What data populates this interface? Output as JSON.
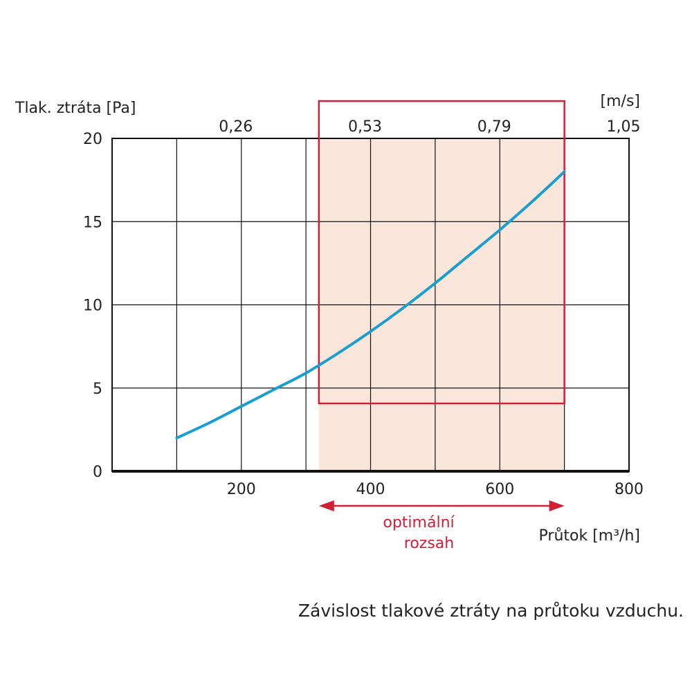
{
  "caption": "Závislost tlakové ztráty na průtoku vzduchu.",
  "chart_data": {
    "type": "line",
    "ylabel": "Tlak. ztráta [Pa]",
    "xlabel": "Průtok [m³/h]",
    "x2label": "[m/s]",
    "xlim": [
      0,
      800
    ],
    "ylim": [
      0,
      20
    ],
    "x_ticks": [
      {
        "value": 200,
        "label": "200"
      },
      {
        "value": 400,
        "label": "400"
      },
      {
        "value": 600,
        "label": "600"
      },
      {
        "value": 800,
        "label": "800"
      }
    ],
    "y_ticks": [
      {
        "value": 0,
        "label": "0"
      },
      {
        "value": 5,
        "label": "5"
      },
      {
        "value": 10,
        "label": "10"
      },
      {
        "value": 15,
        "label": "15"
      },
      {
        "value": 20,
        "label": "20"
      }
    ],
    "x_gridlines": [
      100,
      200,
      300,
      400,
      500,
      600,
      700
    ],
    "secondary_x_ticks": [
      {
        "flow": 200,
        "label": "0,26"
      },
      {
        "flow": 400,
        "label": "0,53"
      },
      {
        "flow": 600,
        "label": "0,79"
      },
      {
        "flow": 800,
        "label": "1,05"
      }
    ],
    "grid": true,
    "series": [
      {
        "color": "#1a9ed0",
        "x": [
          100,
          150,
          200,
          250,
          300,
          350,
          400,
          450,
          500,
          550,
          600,
          650,
          700
        ],
        "y": [
          2.0,
          2.9,
          3.9,
          4.9,
          5.9,
          7.1,
          8.4,
          9.8,
          11.3,
          12.9,
          14.5,
          16.2,
          18.0
        ]
      }
    ],
    "optimal_range": {
      "x": [
        320,
        700
      ],
      "label_line1": "optimální",
      "label_line2": "rozsah",
      "border_color": "#d11f35",
      "fill_color": "#fbe6dc"
    }
  }
}
